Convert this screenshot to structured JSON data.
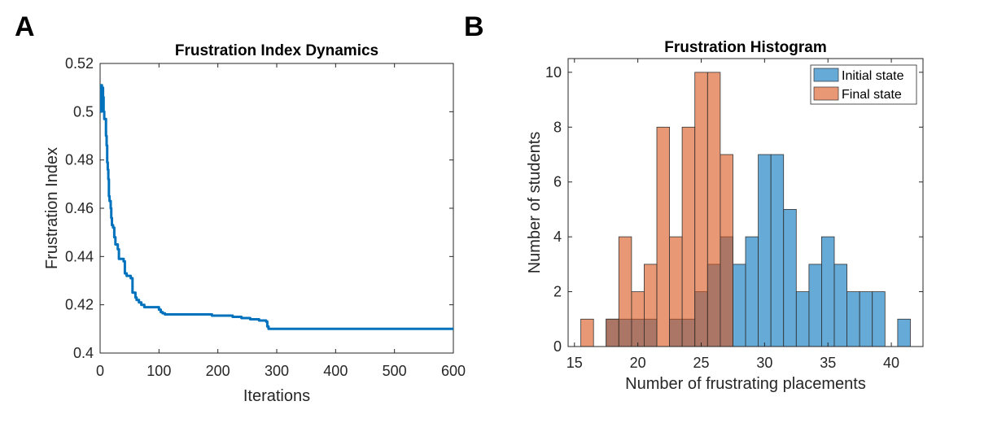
{
  "panels": {
    "a_letter": "A",
    "b_letter": "B"
  },
  "chart_data": [
    {
      "type": "line",
      "title": "Frustration Index Dynamics",
      "xlabel": "Iterations",
      "ylabel": "Frustration Index",
      "xlim": [
        0,
        600
      ],
      "ylim": [
        0.4,
        0.52
      ],
      "xticks": [
        0,
        100,
        200,
        300,
        400,
        500,
        600
      ],
      "yticks": [
        0.4,
        0.42,
        0.44,
        0.46,
        0.48,
        0.5,
        0.52
      ],
      "color": "#0072BD",
      "series": [
        {
          "x": [
            0,
            2,
            3,
            5,
            6,
            7,
            8,
            10,
            11,
            12,
            13,
            14,
            15,
            16,
            17,
            18,
            19,
            20,
            22,
            24,
            26,
            28,
            30,
            32,
            40,
            42,
            45,
            48,
            52,
            55,
            58,
            60,
            62,
            64,
            66,
            68,
            70,
            72,
            75,
            80,
            90,
            100,
            103,
            106,
            110,
            150,
            185,
            190,
            200,
            210,
            220,
            225,
            230,
            240,
            245,
            250,
            255,
            260,
            270,
            275,
            280,
            282,
            284,
            286,
            288,
            300,
            400,
            500,
            600
          ],
          "y": [
            0.5,
            0.511,
            0.51,
            0.506,
            0.5,
            0.497,
            0.497,
            0.49,
            0.486,
            0.479,
            0.476,
            0.472,
            0.465,
            0.463,
            0.463,
            0.46,
            0.456,
            0.453,
            0.452,
            0.448,
            0.445,
            0.445,
            0.443,
            0.439,
            0.438,
            0.433,
            0.432,
            0.432,
            0.431,
            0.425,
            0.425,
            0.423,
            0.422,
            0.422,
            0.421,
            0.421,
            0.42,
            0.42,
            0.419,
            0.419,
            0.419,
            0.418,
            0.417,
            0.4165,
            0.416,
            0.416,
            0.416,
            0.4155,
            0.4155,
            0.4155,
            0.4155,
            0.415,
            0.415,
            0.4145,
            0.4145,
            0.4145,
            0.414,
            0.414,
            0.4135,
            0.4135,
            0.4135,
            0.413,
            0.411,
            0.41,
            0.41,
            0.41,
            0.41,
            0.41,
            0.41
          ]
        }
      ]
    },
    {
      "type": "bar",
      "title": "Frustration Histogram",
      "xlabel": "Number of frustrating placements",
      "ylabel": "Number of students",
      "xlim": [
        14.5,
        42.5
      ],
      "ylim": [
        0,
        10.5
      ],
      "xticks": [
        15,
        20,
        25,
        30,
        35,
        40
      ],
      "yticks": [
        0,
        2,
        4,
        6,
        8,
        10
      ],
      "bin_width": 1,
      "legend_position": "top-right",
      "series": [
        {
          "name": "Initial state",
          "color": "#0072BD",
          "bins": [
            {
              "left": 17.5,
              "count": 1
            },
            {
              "left": 18.5,
              "count": 1
            },
            {
              "left": 19.5,
              "count": 1
            },
            {
              "left": 20.5,
              "count": 1
            },
            {
              "left": 22.5,
              "count": 1
            },
            {
              "left": 23.5,
              "count": 1
            },
            {
              "left": 24.5,
              "count": 2
            },
            {
              "left": 25.5,
              "count": 3
            },
            {
              "left": 26.5,
              "count": 4
            },
            {
              "left": 27.5,
              "count": 3
            },
            {
              "left": 28.5,
              "count": 4
            },
            {
              "left": 29.5,
              "count": 7
            },
            {
              "left": 30.5,
              "count": 7
            },
            {
              "left": 31.5,
              "count": 5
            },
            {
              "left": 32.5,
              "count": 2
            },
            {
              "left": 33.5,
              "count": 3
            },
            {
              "left": 34.5,
              "count": 4
            },
            {
              "left": 35.5,
              "count": 3
            },
            {
              "left": 36.5,
              "count": 2
            },
            {
              "left": 37.5,
              "count": 2
            },
            {
              "left": 38.5,
              "count": 2
            },
            {
              "left": 40.5,
              "count": 1
            }
          ]
        },
        {
          "name": "Final state",
          "color": "#D95319",
          "bins": [
            {
              "left": 15.5,
              "count": 1
            },
            {
              "left": 17.5,
              "count": 1
            },
            {
              "left": 18.5,
              "count": 4
            },
            {
              "left": 19.5,
              "count": 2
            },
            {
              "left": 20.5,
              "count": 3
            },
            {
              "left": 21.5,
              "count": 8
            },
            {
              "left": 22.5,
              "count": 4
            },
            {
              "left": 23.5,
              "count": 8
            },
            {
              "left": 24.5,
              "count": 10
            },
            {
              "left": 25.5,
              "count": 10
            },
            {
              "left": 26.5,
              "count": 7
            }
          ]
        }
      ]
    }
  ]
}
